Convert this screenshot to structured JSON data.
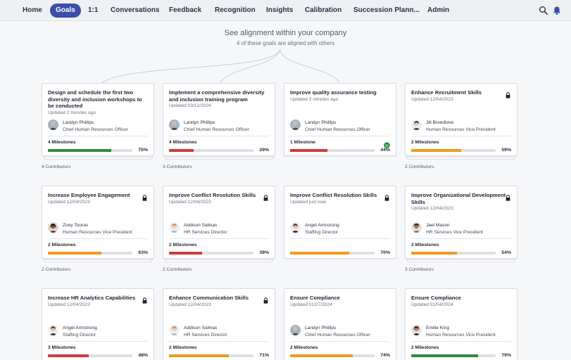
{
  "nav": {
    "items": [
      "Home",
      "Goals",
      "1:1",
      "Conversations",
      "Feedback",
      "Recognition",
      "Insights",
      "Calibration",
      "Succession Plann...",
      "Admin"
    ],
    "active": "Goals",
    "icons": [
      "search-icon",
      "bell-icon"
    ]
  },
  "alignment": {
    "title": "See alignment within your company",
    "subtitle": "4 of these goals are aligned with others"
  },
  "colors": {
    "green": "#2e8b3e",
    "red": "#d23a3a",
    "orange": "#f09a1c",
    "accent": "#3a4fa8"
  },
  "goals": [
    {
      "title": "Design and schedule the first two diversity and inclusion workshops to be conducted",
      "updated": "Updated 2 minutes ago",
      "locked": false,
      "owner": "Landyn Phillips",
      "role": "Chief Human Resources Officer",
      "avatar": "m1",
      "milestones": "4 Milestones",
      "percent": 75,
      "percent_label": "75%",
      "status": "green",
      "contributors": "4 Contributors"
    },
    {
      "title": "Implement a comprehensive diversity and inclusion training program",
      "updated": "Updated 03/12/2024",
      "locked": false,
      "owner": "Landyn Phillips",
      "role": "Chief Human Resources Officer",
      "avatar": "m1",
      "milestones": "4 Milestones",
      "percent": 29,
      "percent_label": "29%",
      "status": "red",
      "contributors": "3 Contributors"
    },
    {
      "title": "Improve quality assurance testing",
      "updated": "Updated 3 minutes ago",
      "locked": false,
      "owner": "Landyn Phillips",
      "role": "Chief Human Resources Officer",
      "avatar": "m1",
      "milestones": "1 Milestone",
      "percent": 44,
      "percent_label": "44%",
      "status": "red",
      "smiley": true,
      "contributors": ""
    },
    {
      "title": "Enhance Recruitment Skills",
      "updated": "Updated 12/04/2023",
      "locked": true,
      "owner": "Jill Breedlove",
      "role": "Human Resources Vice President",
      "avatar": "f1",
      "milestones": "2 Milestones",
      "percent": 59,
      "percent_label": "59%",
      "status": "orange",
      "contributors": "2 Contributors"
    },
    {
      "title": "Increase Employee Engagement",
      "updated": "Updated 12/04/2023",
      "locked": true,
      "owner": "Zoey Touras",
      "role": "Human Resources Vice President",
      "avatar": "f2",
      "milestones": "2 Milestones",
      "percent": 63,
      "percent_label": "63%",
      "status": "orange",
      "contributors": "2 Contributors"
    },
    {
      "title": "Improve Conflict Resolution Skills",
      "updated": "Updated 12/04/2023",
      "locked": true,
      "owner": "Addison Salinas",
      "role": "HR Services Director",
      "avatar": "f3",
      "milestones": "2 Milestones",
      "percent": 39,
      "percent_label": "39%",
      "status": "red",
      "contributors": "2 Contributors"
    },
    {
      "title": "Improve Conflict Resolution Skills",
      "updated": "Updated just now",
      "locked": true,
      "owner": "Angel Armstrong",
      "role": "Staffing Director",
      "avatar": "f4",
      "milestones": "",
      "percent": 70,
      "percent_label": "70%",
      "status": "orange",
      "contributors": ""
    },
    {
      "title": "Improve Organizational Development Skills",
      "updated": "Updated 12/04/2023",
      "locked": true,
      "owner": "Jael Mason",
      "role": "HR Services Vice President",
      "avatar": "f5",
      "milestones": "3 Milestones",
      "percent": 54,
      "percent_label": "54%",
      "status": "orange",
      "contributors": "3 Contributors"
    },
    {
      "title": "Increase HR Analytics Capabilities",
      "updated": "Updated 12/04/2023",
      "locked": true,
      "owner": "Angel Armstrong",
      "role": "Staffing Director",
      "avatar": "f4",
      "milestones": "3 Milestones",
      "percent": 48,
      "percent_label": "48%",
      "status": "red",
      "contributors": ""
    },
    {
      "title": "Enhance Communication Skills",
      "updated": "Updated 12/04/2023",
      "locked": true,
      "owner": "Addison Salinas",
      "role": "HR Services Director",
      "avatar": "f3",
      "milestones": "2 Milestones",
      "percent": 71,
      "percent_label": "71%",
      "status": "orange",
      "contributors": ""
    },
    {
      "title": "Ensure Compliance",
      "updated": "Updated 01/27/2024",
      "locked": false,
      "owner": "Landyn Phillips",
      "role": "Chief Human Resources Officer",
      "avatar": "m1",
      "milestones": "2 Milestones",
      "percent": 74,
      "percent_label": "74%",
      "status": "orange",
      "contributors": ""
    },
    {
      "title": "Ensure Compliance",
      "updated": "Updated 01/04/2024",
      "locked": false,
      "owner": "Emilie King",
      "role": "Human Resources Vice President",
      "avatar": "f6",
      "milestones": "2 Milestones",
      "percent": 79,
      "percent_label": "79%",
      "status": "green",
      "contributors": ""
    }
  ]
}
